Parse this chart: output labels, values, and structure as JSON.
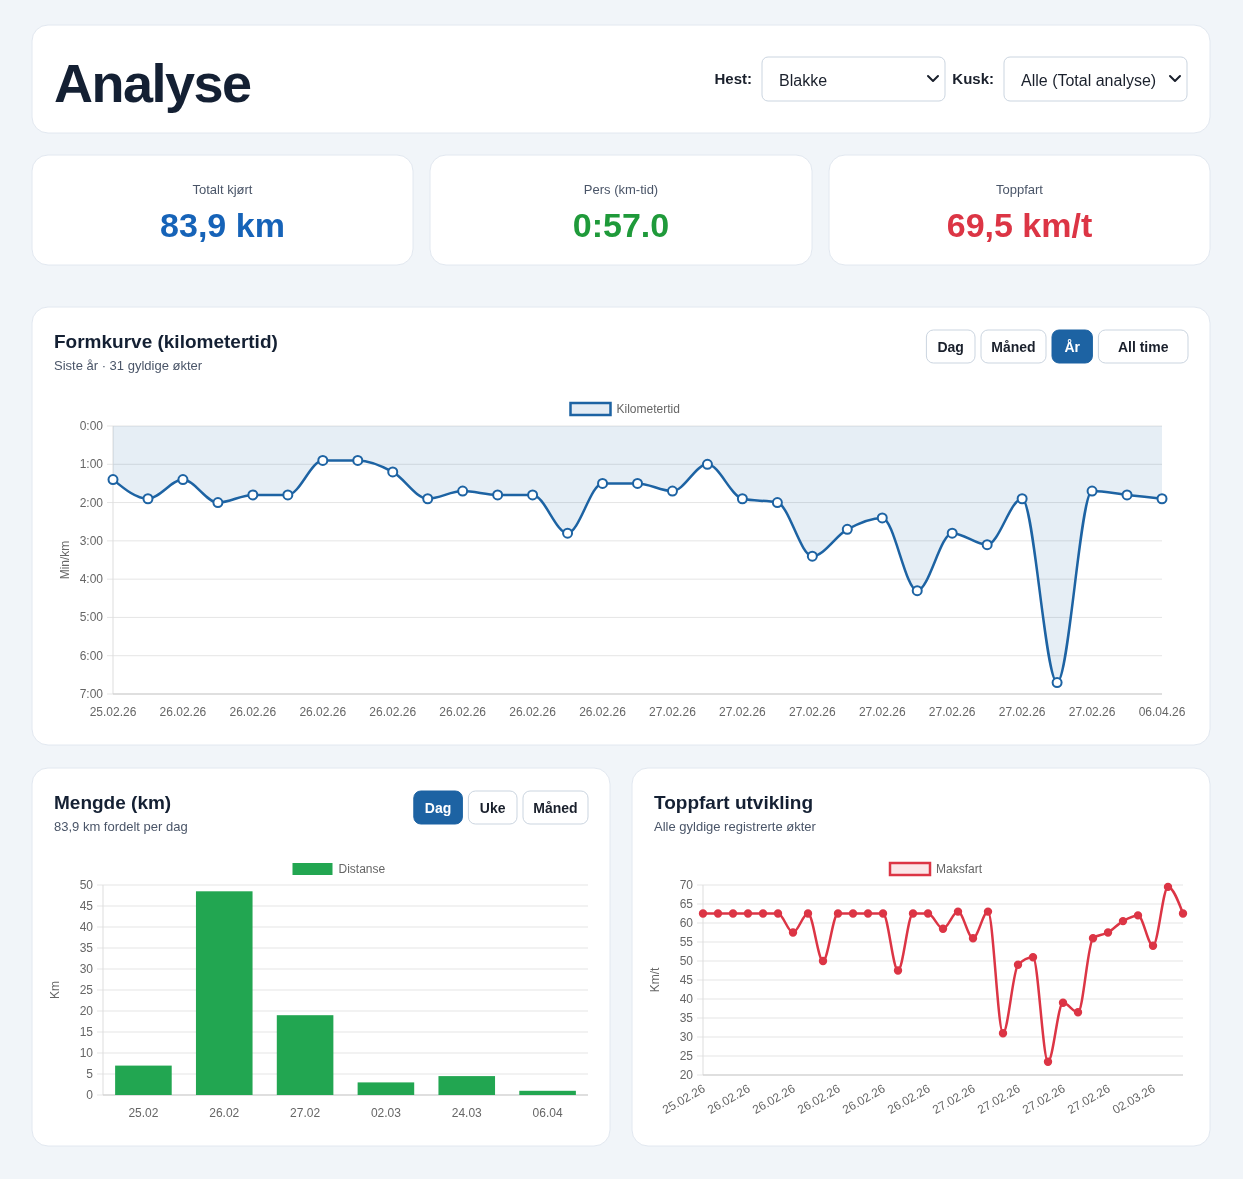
{
  "chart_data": [
    {
      "type": "other",
      "title": "Analyse",
      "annotations": [
        "Hest:",
        "Blakke",
        "Kusk:",
        "Alle (Total analyse)"
      ]
    },
    {
      "type": "other",
      "title": "Totalt kjørt",
      "annotations": [
        "83,9 km"
      ],
      "color": "#1663b8"
    },
    {
      "type": "other",
      "title": "Pers (km-tid)",
      "annotations": [
        "0:57.0"
      ],
      "color": "#1f9a3a"
    },
    {
      "type": "other",
      "title": "Toppfart",
      "annotations": [
        "69,5 km/t"
      ],
      "color": "#dc3545"
    },
    {
      "type": "area",
      "title": "Formkurve (kilometertid)",
      "subtitle": "Siste år · 31 gyldige økter",
      "ylabel": "Min/km",
      "annotations": [
        "Dag",
        "Måned",
        "År",
        "All time"
      ],
      "categories": [
        "25.02.26",
        null,
        "26.02.26",
        null,
        "26.02.26",
        null,
        "26.02.26",
        null,
        "26.02.26",
        null,
        "26.02.26",
        null,
        "26.02.26",
        null,
        "26.02.26",
        null,
        "27.02.26",
        null,
        "27.02.26",
        null,
        "27.02.26",
        null,
        "27.02.26",
        null,
        "27.02.26",
        null,
        "27.02.26",
        null,
        "27.02.26",
        null,
        "06.04.26"
      ],
      "series": [
        {
          "name": "Kilometertid",
          "color": "#1d63a3",
          "values": [
            1.4,
            1.9,
            1.4,
            2.0,
            1.8,
            1.8,
            0.9,
            0.9,
            1.2,
            1.9,
            1.7,
            1.8,
            1.8,
            2.8,
            1.5,
            1.5,
            1.7,
            1.0,
            1.9,
            2.0,
            3.4,
            2.7,
            2.4,
            4.3,
            2.8,
            3.1,
            1.9,
            6.7,
            1.7,
            1.8,
            1.9
          ]
        }
      ],
      "ylim": [
        7,
        0
      ],
      "yticks": [
        {
          "value": 0,
          "label": "0:00"
        },
        {
          "value": 1,
          "label": "1:00"
        },
        {
          "value": 2,
          "label": "2:00"
        },
        {
          "value": 3,
          "label": "3:00"
        },
        {
          "value": 4,
          "label": "4:00"
        },
        {
          "value": 5,
          "label": "5:00"
        },
        {
          "value": 6,
          "label": "6:00"
        },
        {
          "value": 7,
          "label": "7:00"
        }
      ],
      "grid": "y",
      "legend": "top",
      "marker": "circle"
    },
    {
      "type": "bar",
      "title": "Mengde (km)",
      "subtitle": "83,9 km fordelt per dag",
      "ylabel": "Km",
      "annotations": [
        "Dag",
        "Uke",
        "Måned"
      ],
      "categories": [
        "25.02",
        "26.02",
        "27.02",
        "02.03",
        "24.03",
        "06.04"
      ],
      "series": [
        {
          "name": "Distanse",
          "color": "#22a651",
          "values": [
            7,
            48.5,
            19,
            3,
            4.5,
            1
          ]
        }
      ],
      "ylim": [
        0,
        50
      ],
      "yticks": [
        0,
        5,
        10,
        15,
        20,
        25,
        30,
        35,
        40,
        45,
        50
      ],
      "grid": "y",
      "legend": "top"
    },
    {
      "type": "line",
      "title": "Toppfart utvikling",
      "subtitle": "Alle gyldige registrerte økter",
      "ylabel": "Km/t",
      "categories": [
        "25.02.26",
        null,
        null,
        "26.02.26",
        null,
        null,
        "26.02.26",
        null,
        null,
        "26.02.26",
        null,
        null,
        "26.02.26",
        null,
        null,
        "26.02.26",
        null,
        null,
        "27.02.26",
        null,
        null,
        "27.02.26",
        null,
        null,
        "27.02.26",
        null,
        null,
        "27.02.26",
        null,
        null,
        "02.03.26",
        null,
        null
      ],
      "series": [
        {
          "name": "Maksfart",
          "color": "#dc3545",
          "values": [
            62.5,
            62.5,
            62.5,
            62.5,
            62.5,
            62.5,
            57.5,
            62.5,
            50,
            62.5,
            62.5,
            62.5,
            62.5,
            47.5,
            62.5,
            62.5,
            58.5,
            63,
            56,
            63,
            31,
            49,
            51,
            23.5,
            39,
            36.5,
            56,
            57.5,
            60.5,
            62,
            54,
            69.5,
            62.5
          ]
        }
      ],
      "ylim": [
        20,
        70
      ],
      "yticks": [
        20,
        25,
        30,
        35,
        40,
        45,
        50,
        55,
        60,
        65,
        70
      ],
      "grid": "y",
      "legend": "top",
      "marker": "circle"
    }
  ]
}
